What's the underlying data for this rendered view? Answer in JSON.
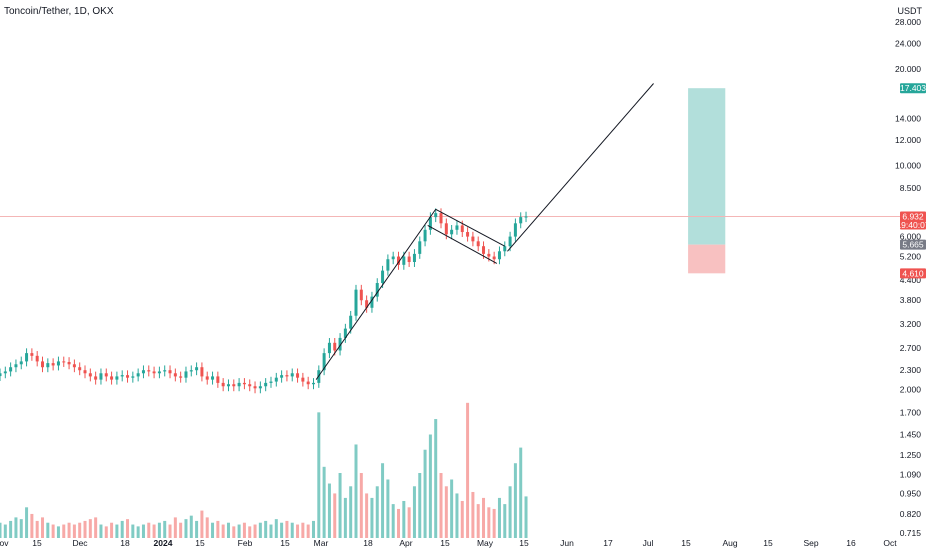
{
  "header": {
    "title": "Toncoin/Tether, 1D, OKX",
    "unit": "USDT"
  },
  "colors": {
    "up": "#26a69a",
    "down": "#ef5350",
    "vol_up": "#80cbc4",
    "vol_down": "#f7a9a7",
    "target_zone": "#b2dfdb",
    "stop_zone": "#f8c1c1",
    "price_line": "#f4b6b6",
    "target_tag": "#26a69a",
    "stop_tag": "#ef5350",
    "entry_tag": "#787b86",
    "price_tag": "#ef5350"
  },
  "chart_data": {
    "type": "candlestick",
    "y_scale": "log",
    "ylim": [
      0.69,
      30.5
    ],
    "yticks": [
      "28.000",
      "24.000",
      "20.000",
      "17.403",
      "14.000",
      "12.000",
      "10.000",
      "8.500",
      "6.932",
      "6.000",
      "5.665",
      "5.200",
      "4.610",
      "4.400",
      "3.800",
      "3.200",
      "2.700",
      "2.300",
      "2.000",
      "1.700",
      "1.450",
      "1.250",
      "1.090",
      "0.950",
      "0.820",
      "0.715"
    ],
    "plain_yticks": [
      "28.000",
      "24.000",
      "20.000",
      "14.000",
      "12.000",
      "10.000",
      "8.500",
      "6.000",
      "5.200",
      "4.400",
      "3.800",
      "3.200",
      "2.700",
      "2.300",
      "2.000",
      "1.700",
      "1.450",
      "1.250",
      "1.090",
      "0.950",
      "0.820",
      "0.715"
    ],
    "xticks": [
      "ov",
      "15",
      "Dec",
      "18",
      "2024",
      "15",
      "Feb",
      "15",
      "Mar",
      "18",
      "Apr",
      "15",
      "May",
      "15",
      "Jun",
      "17",
      "Jul",
      "15",
      "Aug",
      "15",
      "Sep",
      "16",
      "Oct"
    ],
    "x_start": "2023-11-01",
    "x_end": "2024-10-01",
    "last_price": "6.932",
    "countdown": "19:40:07",
    "position": {
      "entry": "5.665",
      "target": "17.403",
      "stop": "4.610",
      "start": "2024-07-17",
      "end": "2024-07-31"
    },
    "trendline": [
      [
        "2024-02-28",
        2.15
      ],
      [
        "2024-04-13",
        7.3
      ]
    ],
    "flag_upper": [
      [
        "2024-04-13",
        7.3
      ],
      [
        "2024-05-09",
        5.6
      ]
    ],
    "flag_lower": [
      [
        "2024-04-10",
        6.5
      ],
      [
        "2024-05-06",
        4.95
      ]
    ],
    "projection": [
      [
        "2024-05-10",
        5.4
      ],
      [
        "2024-07-04",
        18.0
      ]
    ],
    "candles": [
      [
        "2023-11-01",
        2.25
      ],
      [
        "2023-11-03",
        2.28
      ],
      [
        "2023-11-05",
        2.35
      ],
      [
        "2023-11-07",
        2.4
      ],
      [
        "2023-11-09",
        2.45
      ],
      [
        "2023-11-11",
        2.6
      ],
      [
        "2023-11-13",
        2.55
      ],
      [
        "2023-11-15",
        2.45
      ],
      [
        "2023-11-17",
        2.35
      ],
      [
        "2023-11-19",
        2.42
      ],
      [
        "2023-11-21",
        2.38
      ],
      [
        "2023-11-23",
        2.45
      ],
      [
        "2023-11-25",
        2.44
      ],
      [
        "2023-11-27",
        2.4
      ],
      [
        "2023-11-29",
        2.35
      ],
      [
        "2023-12-01",
        2.3
      ],
      [
        "2023-12-03",
        2.25
      ],
      [
        "2023-12-05",
        2.2
      ],
      [
        "2023-12-07",
        2.15
      ],
      [
        "2023-12-09",
        2.25
      ],
      [
        "2023-12-11",
        2.2
      ],
      [
        "2023-12-13",
        2.15
      ],
      [
        "2023-12-15",
        2.2
      ],
      [
        "2023-12-17",
        2.22
      ],
      [
        "2023-12-19",
        2.18
      ],
      [
        "2023-12-21",
        2.2
      ],
      [
        "2023-12-23",
        2.25
      ],
      [
        "2023-12-25",
        2.3
      ],
      [
        "2023-12-27",
        2.28
      ],
      [
        "2023-12-29",
        2.25
      ],
      [
        "2023-12-31",
        2.28
      ],
      [
        "2024-01-02",
        2.3
      ],
      [
        "2024-01-04",
        2.25
      ],
      [
        "2024-01-06",
        2.2
      ],
      [
        "2024-01-08",
        2.18
      ],
      [
        "2024-01-10",
        2.28
      ],
      [
        "2024-01-12",
        2.3
      ],
      [
        "2024-01-14",
        2.35
      ],
      [
        "2024-01-16",
        2.2
      ],
      [
        "2024-01-18",
        2.15
      ],
      [
        "2024-01-20",
        2.2
      ],
      [
        "2024-01-22",
        2.1
      ],
      [
        "2024-01-24",
        2.05
      ],
      [
        "2024-01-26",
        2.08
      ],
      [
        "2024-01-28",
        2.05
      ],
      [
        "2024-01-30",
        2.1
      ],
      [
        "2024-02-01",
        2.08
      ],
      [
        "2024-02-03",
        2.05
      ],
      [
        "2024-02-05",
        2.02
      ],
      [
        "2024-02-07",
        2.05
      ],
      [
        "2024-02-09",
        2.1
      ],
      [
        "2024-02-11",
        2.12
      ],
      [
        "2024-02-13",
        2.18
      ],
      [
        "2024-02-15",
        2.22
      ],
      [
        "2024-02-17",
        2.2
      ],
      [
        "2024-02-19",
        2.25
      ],
      [
        "2024-02-21",
        2.18
      ],
      [
        "2024-02-23",
        2.12
      ],
      [
        "2024-02-25",
        2.08
      ],
      [
        "2024-02-27",
        2.1
      ],
      [
        "2024-02-29",
        2.3
      ],
      [
        "2024-03-02",
        2.6
      ],
      [
        "2024-03-04",
        2.8
      ],
      [
        "2024-03-06",
        2.65
      ],
      [
        "2024-03-08",
        2.9
      ],
      [
        "2024-03-10",
        3.1
      ],
      [
        "2024-03-12",
        3.4
      ],
      [
        "2024-03-14",
        4.1
      ],
      [
        "2024-03-16",
        3.8
      ],
      [
        "2024-03-18",
        3.6
      ],
      [
        "2024-03-20",
        3.9
      ],
      [
        "2024-03-22",
        4.3
      ],
      [
        "2024-03-24",
        4.7
      ],
      [
        "2024-03-26",
        5.1
      ],
      [
        "2024-03-28",
        5.2
      ],
      [
        "2024-03-30",
        4.9
      ],
      [
        "2024-04-01",
        5.2
      ],
      [
        "2024-04-03",
        5.0
      ],
      [
        "2024-04-05",
        5.3
      ],
      [
        "2024-04-07",
        5.8
      ],
      [
        "2024-04-09",
        6.3
      ],
      [
        "2024-04-11",
        6.9
      ],
      [
        "2024-04-13",
        7.1
      ],
      [
        "2024-04-15",
        6.6
      ],
      [
        "2024-04-17",
        6.1
      ],
      [
        "2024-04-19",
        6.3
      ],
      [
        "2024-04-21",
        6.5
      ],
      [
        "2024-04-23",
        6.2
      ],
      [
        "2024-04-25",
        6.0
      ],
      [
        "2024-04-27",
        5.8
      ],
      [
        "2024-04-29",
        5.6
      ],
      [
        "2024-05-01",
        5.3
      ],
      [
        "2024-05-03",
        5.2
      ],
      [
        "2024-05-05",
        5.1
      ],
      [
        "2024-05-07",
        5.4
      ],
      [
        "2024-05-09",
        5.6
      ],
      [
        "2024-05-11",
        6.0
      ],
      [
        "2024-05-13",
        6.6
      ],
      [
        "2024-05-15",
        6.9
      ],
      [
        "2024-05-17",
        6.93
      ]
    ],
    "volume": [
      [
        "2023-11-01",
        0.77
      ],
      [
        "2023-11-03",
        0.76
      ],
      [
        "2023-11-05",
        0.78
      ],
      [
        "2023-11-07",
        0.8
      ],
      [
        "2023-11-09",
        0.79
      ],
      [
        "2023-11-11",
        0.86
      ],
      [
        "2023-11-13",
        0.82
      ],
      [
        "2023-11-15",
        0.78
      ],
      [
        "2023-11-17",
        0.8
      ],
      [
        "2023-11-19",
        0.77
      ],
      [
        "2023-11-21",
        0.76
      ],
      [
        "2023-11-23",
        0.75
      ],
      [
        "2023-11-25",
        0.76
      ],
      [
        "2023-11-27",
        0.77
      ],
      [
        "2023-11-29",
        0.76
      ],
      [
        "2023-12-01",
        0.77
      ],
      [
        "2023-12-03",
        0.78
      ],
      [
        "2023-12-05",
        0.79
      ],
      [
        "2023-12-07",
        0.8
      ],
      [
        "2023-12-09",
        0.76
      ],
      [
        "2023-12-11",
        0.75
      ],
      [
        "2023-12-13",
        0.77
      ],
      [
        "2023-12-15",
        0.76
      ],
      [
        "2023-12-17",
        0.78
      ],
      [
        "2023-12-19",
        0.79
      ],
      [
        "2023-12-21",
        0.76
      ],
      [
        "2023-12-23",
        0.75
      ],
      [
        "2023-12-25",
        0.76
      ],
      [
        "2023-12-27",
        0.77
      ],
      [
        "2023-12-29",
        0.76
      ],
      [
        "2023-12-31",
        0.77
      ],
      [
        "2024-01-02",
        0.78
      ],
      [
        "2024-01-04",
        0.76
      ],
      [
        "2024-01-06",
        0.8
      ],
      [
        "2024-01-08",
        0.77
      ],
      [
        "2024-01-10",
        0.79
      ],
      [
        "2024-01-12",
        0.81
      ],
      [
        "2024-01-14",
        0.78
      ],
      [
        "2024-01-16",
        0.84
      ],
      [
        "2024-01-18",
        0.8
      ],
      [
        "2024-01-20",
        0.77
      ],
      [
        "2024-01-22",
        0.78
      ],
      [
        "2024-01-24",
        0.76
      ],
      [
        "2024-01-26",
        0.77
      ],
      [
        "2024-01-28",
        0.75
      ],
      [
        "2024-01-30",
        0.76
      ],
      [
        "2024-02-01",
        0.77
      ],
      [
        "2024-02-03",
        0.75
      ],
      [
        "2024-02-05",
        0.76
      ],
      [
        "2024-02-07",
        0.77
      ],
      [
        "2024-02-09",
        0.78
      ],
      [
        "2024-02-11",
        0.76
      ],
      [
        "2024-02-13",
        0.79
      ],
      [
        "2024-02-15",
        0.77
      ],
      [
        "2024-02-17",
        0.78
      ],
      [
        "2024-02-19",
        0.77
      ],
      [
        "2024-02-21",
        0.76
      ],
      [
        "2024-02-23",
        0.77
      ],
      [
        "2024-02-25",
        0.76
      ],
      [
        "2024-02-27",
        0.78
      ],
      [
        "2024-02-29",
        1.7
      ],
      [
        "2024-03-02",
        1.15
      ],
      [
        "2024-03-04",
        1.02
      ],
      [
        "2024-03-06",
        0.95
      ],
      [
        "2024-03-08",
        1.1
      ],
      [
        "2024-03-10",
        0.92
      ],
      [
        "2024-03-12",
        1.0
      ],
      [
        "2024-03-14",
        1.35
      ],
      [
        "2024-03-16",
        1.1
      ],
      [
        "2024-03-18",
        0.95
      ],
      [
        "2024-03-20",
        0.92
      ],
      [
        "2024-03-22",
        1.0
      ],
      [
        "2024-03-24",
        1.18
      ],
      [
        "2024-03-26",
        1.05
      ],
      [
        "2024-03-28",
        0.88
      ],
      [
        "2024-03-30",
        0.85
      ],
      [
        "2024-04-01",
        0.9
      ],
      [
        "2024-04-03",
        0.86
      ],
      [
        "2024-04-05",
        1.0
      ],
      [
        "2024-04-07",
        1.1
      ],
      [
        "2024-04-09",
        1.3
      ],
      [
        "2024-04-11",
        1.45
      ],
      [
        "2024-04-13",
        1.62
      ],
      [
        "2024-04-15",
        1.1
      ],
      [
        "2024-04-17",
        1.0
      ],
      [
        "2024-04-19",
        1.05
      ],
      [
        "2024-04-21",
        0.95
      ],
      [
        "2024-04-23",
        0.9
      ],
      [
        "2024-04-25",
        1.82
      ],
      [
        "2024-04-27",
        0.96
      ],
      [
        "2024-04-29",
        0.88
      ],
      [
        "2024-05-01",
        0.92
      ],
      [
        "2024-05-03",
        0.86
      ],
      [
        "2024-05-05",
        0.85
      ],
      [
        "2024-05-07",
        0.92
      ],
      [
        "2024-05-09",
        0.88
      ],
      [
        "2024-05-11",
        1.0
      ],
      [
        "2024-05-13",
        1.18
      ],
      [
        "2024-05-15",
        1.32
      ],
      [
        "2024-05-17",
        0.93
      ]
    ]
  }
}
